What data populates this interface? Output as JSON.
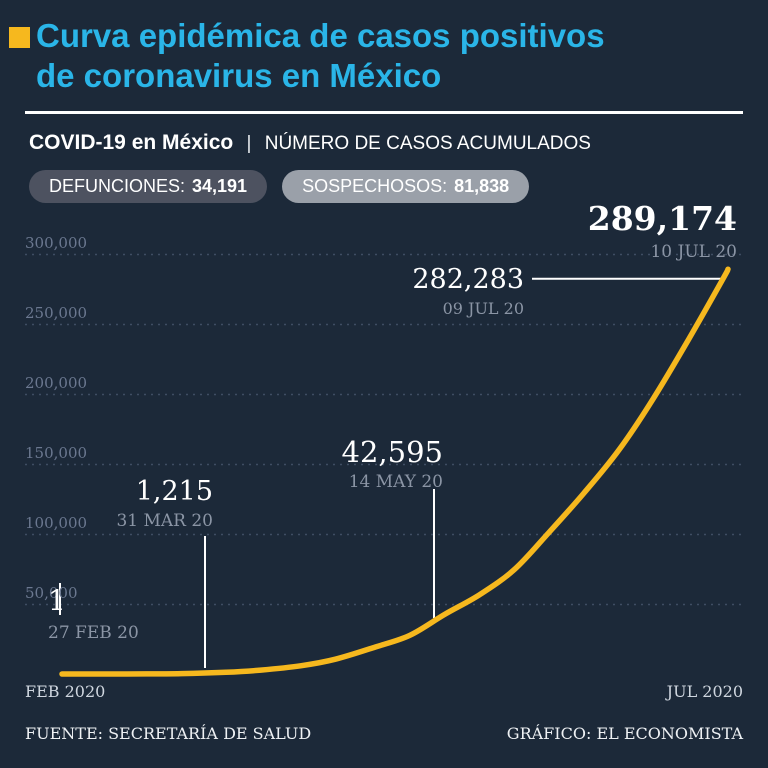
{
  "header": {
    "title_line1": "Curva epidémica de casos positivos",
    "title_line2": "de coronavirus en México",
    "subtitle_bold": "COVID-19 en México",
    "subtitle_sep": "|",
    "subtitle_rest": "NÚMERO DE CASOS ACUMULADOS"
  },
  "badges": [
    {
      "label": "DEFUNCIONES:",
      "value": "34,191"
    },
    {
      "label": "SOSPECHOSOS:",
      "value": "81,838"
    }
  ],
  "x_axis": {
    "start": "FEB 2020",
    "end": "JUL 2020"
  },
  "footer": {
    "source": "FUENTE: SECRETARÍA DE SALUD",
    "credit": "GRÁFICO: EL ECONOMISTA"
  },
  "colors": {
    "background": "#1c2939",
    "title_cyan": "#2ab5e8",
    "curve_yellow": "#f6b81e",
    "badge_dark": "#4d5260",
    "badge_light": "#9aa0a9",
    "date_gray": "#8b95a5",
    "tick_gray": "#6b7890"
  },
  "chart_data": {
    "type": "line",
    "title": "COVID-19 en México — Número de casos acumulados",
    "xlabel": "FEB 2020 – JUL 2020",
    "ylabel": "Casos acumulados",
    "ylim": [
      0,
      300000
    ],
    "x_range_days": 134,
    "grid": "horizontal-dotted",
    "legend": "none",
    "yticks": [
      {
        "value": 50000,
        "label": "50,000"
      },
      {
        "value": 100000,
        "label": "100,000"
      },
      {
        "value": 150000,
        "label": "150,000"
      },
      {
        "value": 200000,
        "label": "200,000"
      },
      {
        "value": 250000,
        "label": "250,000"
      },
      {
        "value": 300000,
        "label": "300,000"
      }
    ],
    "series": [
      {
        "name": "Casos positivos acumulados",
        "color": "#f6b81e",
        "points": [
          {
            "day": 0,
            "date": "27 FEB 20",
            "value": 1
          },
          {
            "day": 9,
            "value": 7
          },
          {
            "day": 17,
            "value": 41
          },
          {
            "day": 24,
            "value": 251
          },
          {
            "day": 33,
            "date": "31 MAR 20",
            "value": 1215
          },
          {
            "day": 40,
            "value": 2785
          },
          {
            "day": 48,
            "value": 5847
          },
          {
            "day": 55,
            "value": 10544
          },
          {
            "day": 63,
            "value": 19224
          },
          {
            "day": 70,
            "value": 27634
          },
          {
            "day": 77,
            "date": "14 MAY 20",
            "value": 42595
          },
          {
            "day": 84,
            "value": 56594
          },
          {
            "day": 91,
            "value": 74560
          },
          {
            "day": 98,
            "value": 101238
          },
          {
            "day": 105,
            "value": 129184
          },
          {
            "day": 112,
            "value": 159793
          },
          {
            "day": 119,
            "value": 196847
          },
          {
            "day": 126,
            "value": 238511
          },
          {
            "day": 133,
            "date": "09 JUL 20",
            "value": 282283
          },
          {
            "day": 134,
            "date": "10 JUL 20",
            "value": 289174
          }
        ]
      }
    ],
    "annotations": [
      {
        "value": "289,174",
        "numeric": 289174,
        "date": "10 JUL 20",
        "day": 134
      },
      {
        "value": "282,283",
        "numeric": 282283,
        "date": "09 JUL 20",
        "day": 133
      },
      {
        "value": "42,595",
        "numeric": 42595,
        "date": "14 MAY 20",
        "day": 77
      },
      {
        "value": "1,215",
        "numeric": 1215,
        "date": "31 MAR 20",
        "day": 33
      },
      {
        "value": "1",
        "numeric": 1,
        "date": "27 FEB 20",
        "day": 0
      }
    ]
  }
}
